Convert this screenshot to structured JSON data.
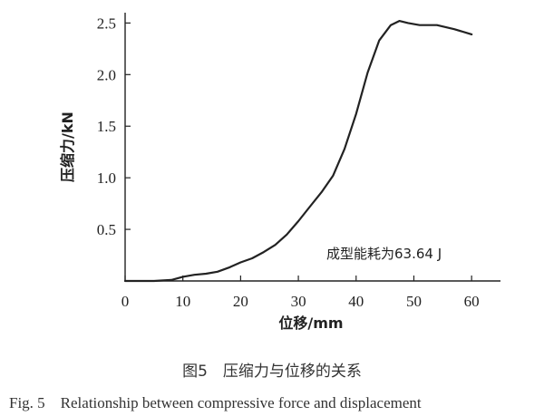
{
  "chart_data": {
    "type": "line",
    "xlabel": "位移/mm",
    "ylabel": "压缩力/kN",
    "xlim": [
      0,
      65
    ],
    "ylim": [
      0,
      2.6
    ],
    "x_ticks": [
      "0",
      "10",
      "20",
      "30",
      "40",
      "50",
      "60"
    ],
    "y_ticks": [
      "0.5",
      "1.0",
      "1.5",
      "2.0",
      "2.5"
    ],
    "grid": false,
    "annotation": "成型能耗为63.64 J",
    "series": [
      {
        "color": "#222222",
        "points": [
          [
            0,
            0
          ],
          [
            5,
            0
          ],
          [
            8,
            0.01
          ],
          [
            10,
            0.04
          ],
          [
            12,
            0.06
          ],
          [
            14,
            0.07
          ],
          [
            16,
            0.09
          ],
          [
            18,
            0.13
          ],
          [
            20,
            0.18
          ],
          [
            22,
            0.22
          ],
          [
            24,
            0.28
          ],
          [
            26,
            0.35
          ],
          [
            28,
            0.45
          ],
          [
            30,
            0.58
          ],
          [
            32,
            0.72
          ],
          [
            34,
            0.86
          ],
          [
            36,
            1.02
          ],
          [
            38,
            1.28
          ],
          [
            40,
            1.62
          ],
          [
            42,
            2.02
          ],
          [
            44,
            2.33
          ],
          [
            46,
            2.48
          ],
          [
            47.5,
            2.52
          ],
          [
            49,
            2.5
          ],
          [
            51,
            2.48
          ],
          [
            54,
            2.48
          ],
          [
            57,
            2.44
          ],
          [
            60,
            2.39
          ]
        ]
      }
    ]
  },
  "caption": {
    "chinese": "图5　压缩力与位移的关系",
    "english": "Fig. 5　Relationship between compressive force and displacement"
  }
}
